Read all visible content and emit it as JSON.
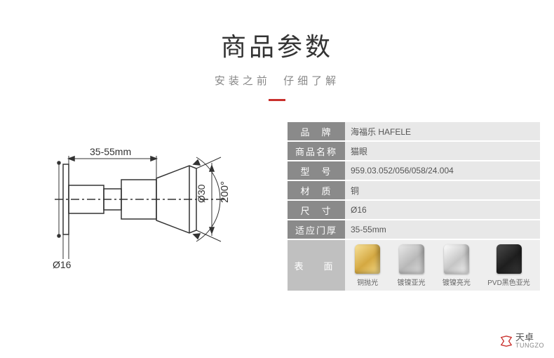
{
  "header": {
    "title": "商品参数",
    "subtitle_left": "安装之前",
    "subtitle_right": "仔细了解",
    "accent_color": "#c9302c"
  },
  "diagram": {
    "dim_top": "35-55mm",
    "dim_right_diameter": "Ø30",
    "dim_angle": "200°",
    "dim_bottom": "Ø16",
    "stroke": "#333333"
  },
  "specs": [
    {
      "label": "品　牌",
      "value": "海福乐 HAFELE"
    },
    {
      "label": "商品名称",
      "value": "猫眼"
    },
    {
      "label": "型　号",
      "value": "959.03.052/056/058/24.004"
    },
    {
      "label": "材　质",
      "value": "铜"
    },
    {
      "label": "尺　寸",
      "value": "Ø16"
    },
    {
      "label": "适应门厚",
      "value": "35-55mm"
    }
  ],
  "finish": {
    "label": "表　面",
    "items": [
      {
        "name": "铜抛光",
        "gradient": "linear-gradient(140deg,#f8e29a 0%,#d4a841 55%,#f6dd8c 100%)"
      },
      {
        "name": "镀镍亚光",
        "gradient": "linear-gradient(140deg,#e9e9e9 0%,#b8b8b8 55%,#dedede 100%)"
      },
      {
        "name": "镀镍亮光",
        "gradient": "linear-gradient(140deg,#fdfdfd 0%,#c5c5c5 55%,#f6f6f6 100%)"
      },
      {
        "name": "PVD黑色亚光",
        "gradient": "linear-gradient(140deg,#4a4a4a 0%,#1e1e1e 55%,#3a3a3a 100%)"
      }
    ]
  },
  "logo": {
    "cn": "天卓",
    "en": "TUNGZO",
    "icon_color": "#c9302c"
  }
}
